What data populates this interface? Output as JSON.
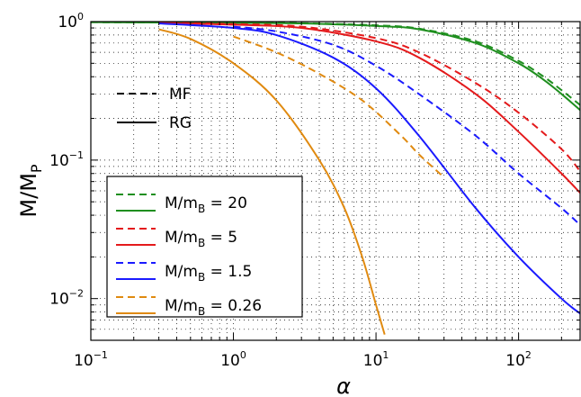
{
  "chart_data": {
    "type": "line",
    "title": "",
    "xlabel": {
      "main": "α"
    },
    "ylabel": {
      "main": "M/M",
      "sub": "P"
    },
    "xscale": "log",
    "yscale": "log",
    "xlim": [
      0.1,
      270
    ],
    "ylim": [
      0.005,
      1.0
    ],
    "grid": "dotted major and minor",
    "x_ticks": [
      {
        "value": 0.1,
        "base": "10",
        "exp": "−1"
      },
      {
        "value": 1,
        "base": "10",
        "exp": "0"
      },
      {
        "value": 10,
        "base": "10",
        "exp": "1"
      },
      {
        "value": 100,
        "base": "10",
        "exp": "2"
      }
    ],
    "y_ticks": [
      {
        "value": 1,
        "base": "10",
        "exp": "0"
      },
      {
        "value": 0.1,
        "base": "10",
        "exp": "−1"
      },
      {
        "value": 0.01,
        "base": "10",
        "exp": "−2"
      }
    ],
    "style_legend": {
      "placement": "upper-left",
      "entries": [
        {
          "label": "MF",
          "dash": "dashed"
        },
        {
          "label": "RG",
          "dash": "solid"
        }
      ]
    },
    "series_legend": {
      "placement": "lower-left",
      "entries": [
        {
          "prefix": "M/m",
          "sub": "B",
          "suffix": " = 20",
          "color": "#1f8f1f"
        },
        {
          "prefix": "M/m",
          "sub": "B",
          "suffix": " = 5",
          "color": "#e41a1c"
        },
        {
          "prefix": "M/m",
          "sub": "B",
          "suffix": " = 1.5",
          "color": "#1a1aff"
        },
        {
          "prefix": "M/m",
          "sub": "B",
          "suffix": " = 0.26",
          "color": "#e08a10"
        }
      ]
    },
    "series": [
      {
        "color": "#1f8f1f",
        "dash": "solid",
        "x": [
          0.1,
          1,
          3,
          10,
          20,
          50,
          100,
          150,
          200,
          270
        ],
        "y": [
          0.99,
          0.98,
          0.97,
          0.93,
          0.88,
          0.7,
          0.5,
          0.38,
          0.3,
          0.23
        ]
      },
      {
        "color": "#1f8f1f",
        "dash": "dashed",
        "x": [
          0.1,
          1,
          3,
          10,
          20,
          50,
          100,
          150,
          200,
          270
        ],
        "y": [
          0.99,
          0.985,
          0.975,
          0.94,
          0.89,
          0.72,
          0.52,
          0.4,
          0.32,
          0.25
        ]
      },
      {
        "color": "#e41a1c",
        "dash": "solid",
        "x": [
          0.3,
          1,
          3,
          10,
          20,
          50,
          100,
          200,
          270
        ],
        "y": [
          0.98,
          0.95,
          0.9,
          0.72,
          0.55,
          0.3,
          0.16,
          0.08,
          0.058
        ]
      },
      {
        "color": "#e41a1c",
        "dash": "dashed",
        "x": [
          0.3,
          1,
          3,
          10,
          20,
          50,
          100,
          200,
          270
        ],
        "y": [
          0.985,
          0.96,
          0.92,
          0.76,
          0.6,
          0.36,
          0.22,
          0.12,
          0.083
        ]
      },
      {
        "color": "#1a1aff",
        "dash": "solid",
        "x": [
          0.3,
          1,
          2,
          5,
          10,
          20,
          50,
          100,
          200,
          270
        ],
        "y": [
          0.97,
          0.9,
          0.8,
          0.55,
          0.33,
          0.15,
          0.045,
          0.02,
          0.01,
          0.0078
        ]
      },
      {
        "color": "#1a1aff",
        "dash": "dashed",
        "x": [
          1,
          2,
          5,
          10,
          20,
          50,
          100,
          200,
          270
        ],
        "y": [
          0.92,
          0.85,
          0.68,
          0.48,
          0.3,
          0.15,
          0.08,
          0.045,
          0.034
        ]
      },
      {
        "color": "#e08a10",
        "dash": "solid",
        "x": [
          0.3,
          0.5,
          1,
          2,
          4,
          6,
          8,
          10,
          11.5
        ],
        "y": [
          0.88,
          0.75,
          0.5,
          0.27,
          0.1,
          0.045,
          0.02,
          0.009,
          0.0055
        ]
      },
      {
        "color": "#e08a10",
        "dash": "dashed",
        "x": [
          1,
          2,
          4,
          8,
          15,
          20,
          30
        ],
        "y": [
          0.78,
          0.6,
          0.42,
          0.27,
          0.15,
          0.11,
          0.075
        ]
      }
    ]
  }
}
